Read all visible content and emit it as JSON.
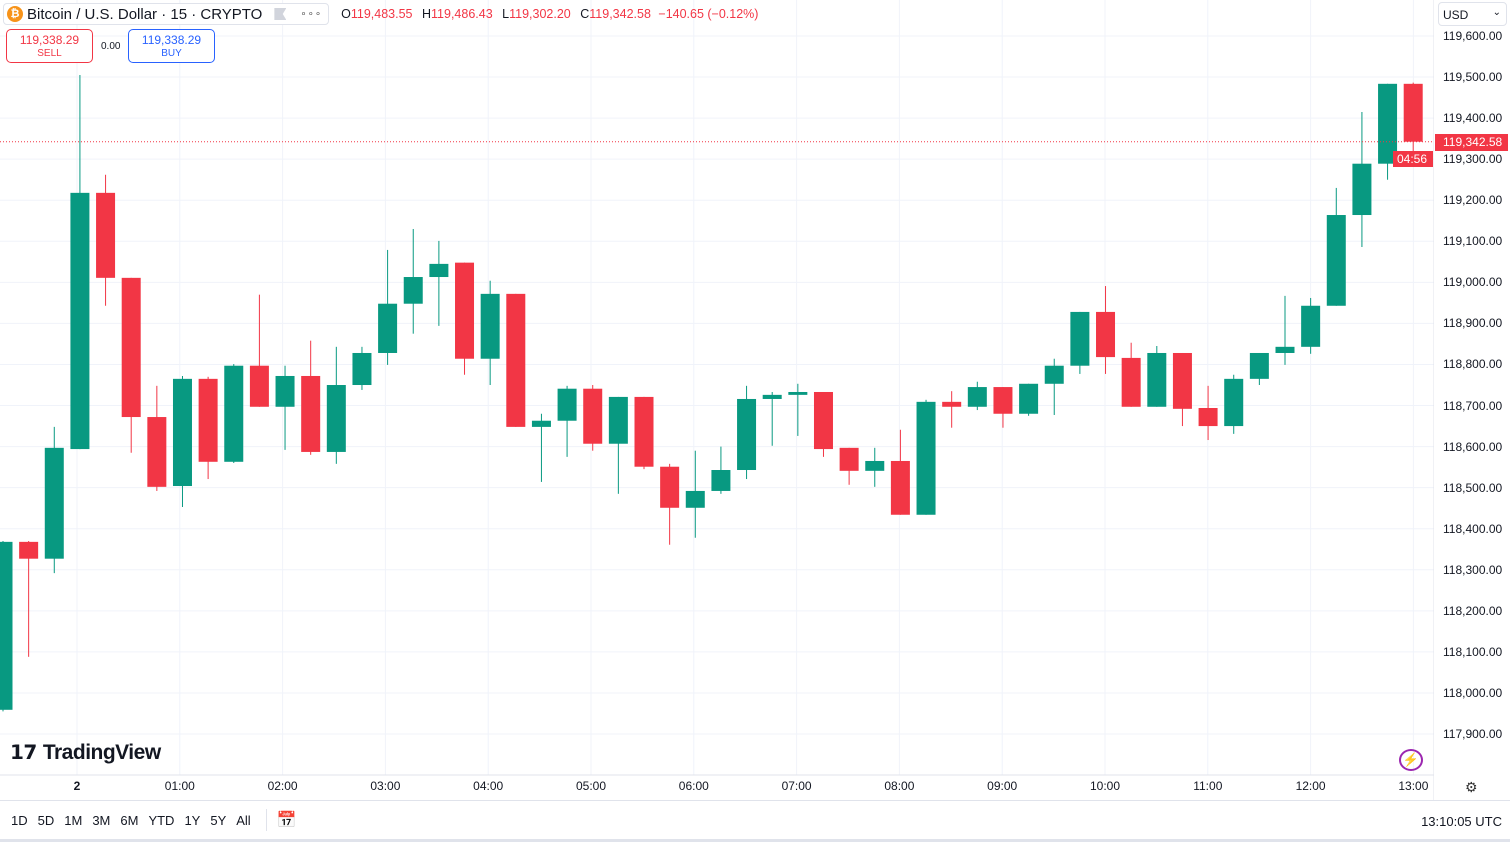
{
  "header": {
    "symbol_icon": "bitcoin-icon",
    "symbol_title": "Bitcoin / U.S. Dollar · 15 · CRYPTO",
    "more": "∘∘∘",
    "ohlc": {
      "o_label": "O",
      "o": "119,483.55",
      "h_label": "H",
      "h": "119,486.43",
      "l_label": "L",
      "l": "119,302.20",
      "c_label": "C",
      "c": "119,342.58",
      "change": "−140.65 (−0.12%)"
    }
  },
  "trade": {
    "sell_price": "119,338.29",
    "sell_label": "SELL",
    "spread": "0.00",
    "buy_price": "119,338.29",
    "buy_label": "BUY"
  },
  "currency": "USD",
  "last_price": {
    "price": "119,342.58",
    "countdown": "04:56"
  },
  "price_labels": [
    "119,600.00",
    "119,500.00",
    "119,400.00",
    "119,300.00",
    "119,200.00",
    "119,100.00",
    "119,000.00",
    "118,900.00",
    "118,800.00",
    "118,700.00",
    "118,600.00",
    "118,500.00",
    "118,400.00",
    "118,300.00",
    "118,200.00",
    "118,100.00",
    "118,000.00",
    "117,900.00"
  ],
  "time_labels": [
    "2",
    "01:00",
    "02:00",
    "03:00",
    "04:00",
    "05:00",
    "06:00",
    "07:00",
    "08:00",
    "09:00",
    "10:00",
    "11:00",
    "12:00",
    "13:00"
  ],
  "logo": "TradingView",
  "ranges": [
    "1D",
    "5D",
    "1M",
    "3M",
    "6M",
    "YTD",
    "1Y",
    "5Y",
    "All"
  ],
  "clock": "13:10:05 UTC",
  "colors": {
    "up": "#089981",
    "down": "#f23645",
    "grid": "#f0f3fa"
  },
  "chart_data": {
    "type": "candlestick",
    "title": "Bitcoin / U.S. Dollar · 15 · CRYPTO",
    "interval_minutes": 15,
    "first_candle_time": "23:15",
    "ylim": [
      117850,
      119650
    ],
    "grid": true,
    "candles_ohlc": [
      [
        117959,
        118370,
        117955,
        118368
      ],
      [
        118368,
        118370,
        118088,
        118327
      ],
      [
        118327,
        118648,
        118292,
        118597
      ],
      [
        118594,
        119505,
        118594,
        119218
      ],
      [
        119218,
        119262,
        118943,
        119011
      ],
      [
        119011,
        119011,
        118585,
        118672
      ],
      [
        118672,
        118748,
        118492,
        118502
      ],
      [
        118504,
        118772,
        118453,
        118765
      ],
      [
        118765,
        118770,
        118521,
        118563
      ],
      [
        118563,
        118801,
        118560,
        118797
      ],
      [
        118797,
        118970,
        118697,
        118697
      ],
      [
        118697,
        118797,
        118592,
        118772
      ],
      [
        118772,
        118858,
        118580,
        118587
      ],
      [
        118587,
        118843,
        118558,
        118750
      ],
      [
        118750,
        118843,
        118738,
        118828
      ],
      [
        118828,
        119079,
        118799,
        118948
      ],
      [
        118948,
        119130,
        118875,
        119013
      ],
      [
        119013,
        119101,
        118894,
        119045
      ],
      [
        119048,
        119048,
        118775,
        118814
      ],
      [
        118814,
        119004,
        118750,
        118972
      ],
      [
        118972,
        118972,
        118648,
        118648
      ],
      [
        118648,
        118680,
        118514,
        118663
      ],
      [
        118663,
        118748,
        118575,
        118741
      ],
      [
        118741,
        118750,
        118590,
        118607
      ],
      [
        118607,
        118721,
        118485,
        118721
      ],
      [
        118721,
        118721,
        118545,
        118551
      ],
      [
        118551,
        118558,
        118361,
        118451
      ],
      [
        118451,
        118590,
        118378,
        118492
      ],
      [
        118492,
        118600,
        118485,
        118543
      ],
      [
        118543,
        118748,
        118521,
        118716
      ],
      [
        118716,
        118733,
        118602,
        118726
      ],
      [
        118726,
        118753,
        118626,
        118733
      ],
      [
        118733,
        118733,
        118575,
        118594
      ],
      [
        118597,
        118597,
        118507,
        118541
      ],
      [
        118541,
        118597,
        118502,
        118565
      ],
      [
        118565,
        118641,
        118434,
        118434
      ],
      [
        118434,
        118714,
        118434,
        118709
      ],
      [
        118709,
        118735,
        118646,
        118697
      ],
      [
        118697,
        118758,
        118689,
        118745
      ],
      [
        118745,
        118745,
        118646,
        118680
      ],
      [
        118680,
        118753,
        118675,
        118753
      ],
      [
        118753,
        118814,
        118677,
        118797
      ],
      [
        118797,
        118928,
        118777,
        118928
      ],
      [
        118928,
        118991,
        118777,
        118818
      ],
      [
        118816,
        118853,
        118697,
        118697
      ],
      [
        118697,
        118845,
        118697,
        118828
      ],
      [
        118828,
        118828,
        118650,
        118692
      ],
      [
        118694,
        118748,
        118616,
        118650
      ],
      [
        118650,
        118775,
        118631,
        118765
      ],
      [
        118765,
        118828,
        118750,
        118828
      ],
      [
        118828,
        118967,
        118799,
        118843
      ],
      [
        118843,
        118962,
        118826,
        118943
      ],
      [
        118943,
        119230,
        118943,
        119164
      ],
      [
        119164,
        119415,
        119086,
        119289
      ],
      [
        119289,
        119483.55,
        119250,
        119483.55
      ],
      [
        119483.55,
        119486.43,
        119302.2,
        119342.58
      ]
    ]
  }
}
